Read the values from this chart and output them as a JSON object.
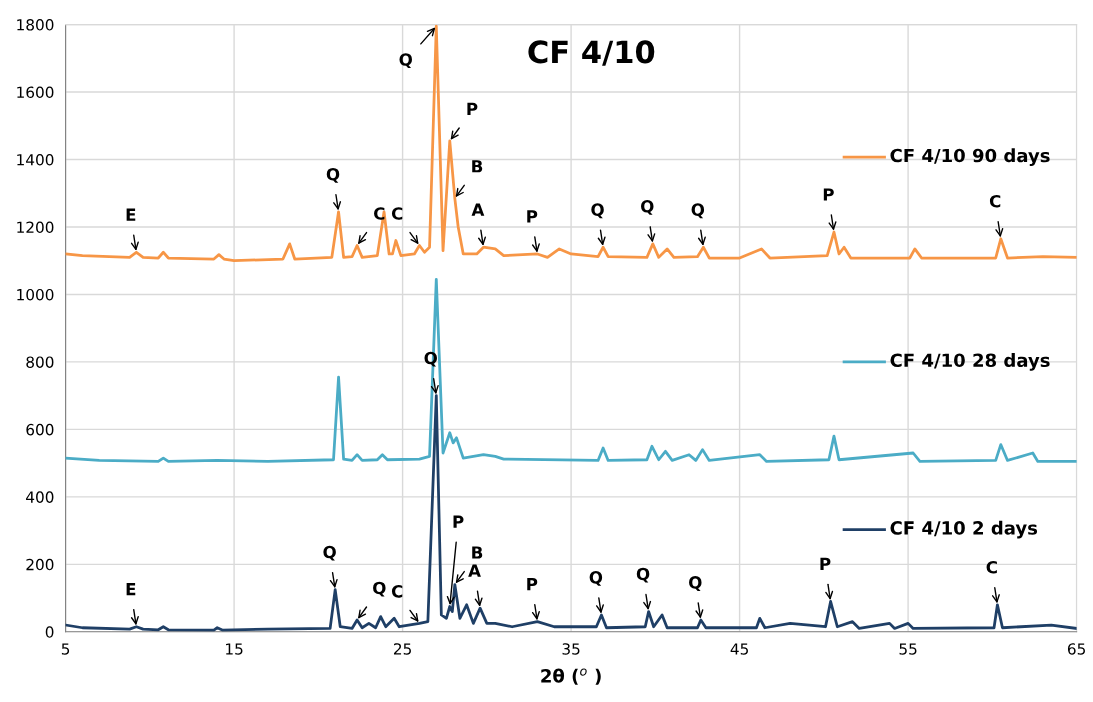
{
  "chart_data": {
    "type": "line",
    "title": "CF 4/10",
    "xlabel": "2θ ($^{o}$ )",
    "xlim": [
      5,
      65
    ],
    "xticks": [
      5,
      15,
      25,
      35,
      45,
      55,
      65
    ],
    "ylim": [
      0,
      1800
    ],
    "yticks": [
      0,
      200,
      400,
      600,
      800,
      1000,
      1200,
      1400,
      1600,
      1800
    ],
    "grid": true,
    "legend": "right",
    "marker": "none",
    "line_style": "solid",
    "series": [
      {
        "name": "CF 4/10 90 days",
        "color": "#f79646",
        "x": [
          5,
          6,
          8.8,
          9.2,
          9.6,
          10.5,
          10.8,
          11.1,
          13.8,
          14.1,
          14.4,
          15,
          17.9,
          18.3,
          18.6,
          20.8,
          21.2,
          21.5,
          22.0,
          22.3,
          22.6,
          23.5,
          23.9,
          24.2,
          24.4,
          24.6,
          24.9,
          25.7,
          26.0,
          26.3,
          26.6,
          27.0,
          27.4,
          27.8,
          28.1,
          28.3,
          28.6,
          29.4,
          29.8,
          30.5,
          31,
          33,
          33.6,
          34.3,
          35,
          36.6,
          36.9,
          37.2,
          39.5,
          39.85,
          40.2,
          40.7,
          41.1,
          42.5,
          42.85,
          43.2,
          45,
          46.3,
          46.8,
          50.2,
          50.6,
          50.9,
          51.2,
          51.6,
          55.1,
          55.4,
          55.8,
          60.2,
          60.5,
          60.9,
          63,
          65
        ],
        "values": [
          1120,
          1115,
          1110,
          1125,
          1110,
          1108,
          1125,
          1108,
          1105,
          1118,
          1105,
          1100,
          1105,
          1150,
          1105,
          1110,
          1245,
          1110,
          1112,
          1145,
          1110,
          1115,
          1245,
          1120,
          1120,
          1160,
          1115,
          1120,
          1145,
          1125,
          1140,
          1795,
          1130,
          1455,
          1285,
          1200,
          1120,
          1120,
          1140,
          1135,
          1115,
          1120,
          1110,
          1135,
          1120,
          1112,
          1140,
          1112,
          1110,
          1150,
          1110,
          1135,
          1110,
          1112,
          1140,
          1108,
          1108,
          1135,
          1108,
          1115,
          1185,
          1120,
          1140,
          1108,
          1108,
          1135,
          1108,
          1108,
          1165,
          1108,
          1112,
          1110
        ]
      },
      {
        "name": "CF 4/10 28 days",
        "color": "#4bacc6",
        "x": [
          5,
          7,
          10.5,
          10.8,
          11.1,
          14,
          17,
          20.9,
          21.2,
          21.5,
          22.0,
          22.3,
          22.6,
          23.5,
          23.8,
          24.1,
          26.0,
          26.6,
          27.0,
          27.4,
          27.8,
          28.0,
          28.2,
          28.6,
          29.8,
          30.5,
          31,
          36.6,
          36.9,
          37.2,
          39.5,
          39.8,
          40.2,
          40.6,
          41.0,
          42.0,
          42.4,
          42.8,
          43.2,
          46.2,
          46.6,
          50.3,
          50.6,
          50.9,
          55.3,
          55.7,
          60.2,
          60.5,
          60.9,
          62.4,
          62.7,
          65
        ],
        "values": [
          515,
          508,
          505,
          515,
          505,
          508,
          505,
          510,
          755,
          512,
          508,
          525,
          508,
          510,
          525,
          510,
          512,
          520,
          1045,
          530,
          590,
          560,
          575,
          515,
          525,
          520,
          512,
          508,
          545,
          508,
          510,
          550,
          510,
          535,
          508,
          525,
          508,
          540,
          508,
          525,
          505,
          510,
          580,
          510,
          530,
          505,
          508,
          555,
          508,
          530,
          505,
          505
        ]
      },
      {
        "name": "CF 4/10 2 days",
        "color": "#1f3f66",
        "x": [
          5,
          6,
          8.8,
          9.2,
          9.6,
          10.5,
          10.8,
          11.1,
          13.8,
          14.0,
          14.3,
          17,
          20.7,
          21.0,
          21.3,
          22.0,
          22.3,
          22.6,
          23.0,
          23.4,
          23.7,
          24.0,
          24.5,
          24.8,
          26.0,
          26.5,
          27.0,
          27.3,
          27.6,
          27.8,
          27.95,
          28.1,
          28.4,
          28.8,
          29.2,
          29.6,
          30.0,
          30.5,
          31.5,
          33.0,
          34,
          35.5,
          36.5,
          36.8,
          37.1,
          39.4,
          39.6,
          39.9,
          40.4,
          40.7,
          42.5,
          42.7,
          43.0,
          46.0,
          46.2,
          46.5,
          48,
          50.1,
          50.4,
          50.8,
          51.7,
          52.1,
          53.9,
          54.2,
          55.0,
          55.3,
          60.1,
          60.3,
          60.6,
          63.5,
          65
        ],
        "values": [
          20,
          12,
          8,
          15,
          8,
          6,
          15,
          6,
          5,
          12,
          5,
          8,
          10,
          125,
          15,
          10,
          35,
          12,
          25,
          12,
          45,
          15,
          40,
          15,
          25,
          30,
          700,
          50,
          40,
          75,
          60,
          140,
          40,
          80,
          25,
          70,
          25,
          25,
          15,
          30,
          15,
          15,
          15,
          50,
          12,
          15,
          60,
          15,
          50,
          12,
          12,
          35,
          12,
          12,
          40,
          12,
          25,
          15,
          90,
          15,
          30,
          10,
          25,
          10,
          25,
          10,
          12,
          80,
          12,
          20,
          10
        ]
      }
    ],
    "annotations": [
      {
        "text": "E",
        "x": 9.2,
        "y": 1125
      },
      {
        "text": "Q",
        "x": 21.2,
        "y": 1245
      },
      {
        "text": "C",
        "x": 22.3,
        "y": 1145
      },
      {
        "text": "C",
        "x": 26.0,
        "y": 1145
      },
      {
        "text": "Q",
        "x": 27.0,
        "y": 1795
      },
      {
        "text": "P",
        "x": 27.8,
        "y": 1455
      },
      {
        "text": "B",
        "x": 28.1,
        "y": 1285
      },
      {
        "text": "A",
        "x": 29.8,
        "y": 1140
      },
      {
        "text": "P",
        "x": 33,
        "y": 1120
      },
      {
        "text": "Q",
        "x": 36.9,
        "y": 1140
      },
      {
        "text": "Q",
        "x": 39.85,
        "y": 1150
      },
      {
        "text": "Q",
        "x": 42.85,
        "y": 1140
      },
      {
        "text": "P",
        "x": 50.6,
        "y": 1185
      },
      {
        "text": "C",
        "x": 60.5,
        "y": 1165
      },
      {
        "text": "E",
        "x": 9.2,
        "y": 15
      },
      {
        "text": "Q",
        "x": 21.0,
        "y": 125
      },
      {
        "text": "Q",
        "x": 22.3,
        "y": 35
      },
      {
        "text": "C",
        "x": 26.0,
        "y": 25
      },
      {
        "text": "Q",
        "x": 27.0,
        "y": 700
      },
      {
        "text": "P",
        "x": 27.8,
        "y": 75
      },
      {
        "text": "B",
        "x": 28.1,
        "y": 140
      },
      {
        "text": "A",
        "x": 29.6,
        "y": 70
      },
      {
        "text": "P",
        "x": 33.0,
        "y": 30
      },
      {
        "text": "Q",
        "x": 36.8,
        "y": 50
      },
      {
        "text": "Q",
        "x": 39.6,
        "y": 60
      },
      {
        "text": "Q",
        "x": 42.7,
        "y": 35
      },
      {
        "text": "P",
        "x": 50.4,
        "y": 90
      },
      {
        "text": "C",
        "x": 60.3,
        "y": 80
      }
    ]
  }
}
